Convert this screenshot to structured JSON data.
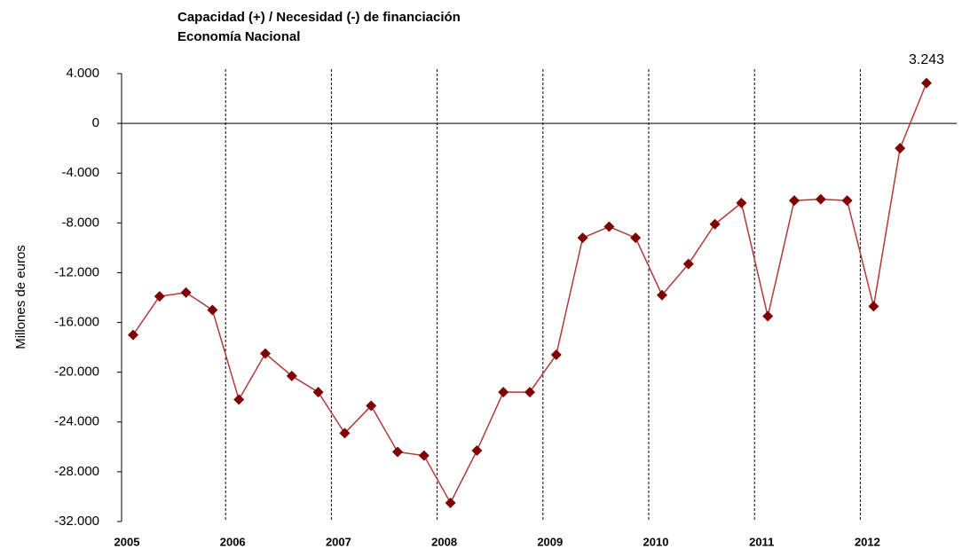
{
  "chart_data": {
    "type": "line",
    "title": "Capacidad (+) / Necesidad (-) de financiación",
    "subtitle": "Economía Nacional",
    "y_label": "Millones de euros",
    "categories": [
      "2005",
      null,
      null,
      null,
      "2006",
      null,
      null,
      null,
      "2007",
      null,
      null,
      null,
      "2008",
      null,
      null,
      null,
      "2009",
      null,
      null,
      null,
      "2010",
      null,
      null,
      null,
      "2011",
      null,
      null,
      null,
      "2012",
      null,
      null
    ],
    "series": [
      {
        "name": "Capacidad / Necesidad de financiación",
        "color": "#b03a3a",
        "marker_color": "#7f0000",
        "values": [
          -17000,
          -13900,
          -13600,
          -15000,
          -22200,
          -18500,
          -20300,
          -21600,
          -24900,
          -22700,
          -26400,
          -26700,
          -30500,
          -26300,
          -21600,
          -21600,
          -18600,
          -9200,
          -8300,
          -9200,
          -13800,
          -11300,
          -8100,
          -6400,
          -15500,
          -6200,
          -6100,
          -6200,
          -14700,
          -2000,
          3243
        ],
        "value_labels": [
          null,
          null,
          null,
          null,
          null,
          null,
          null,
          null,
          null,
          null,
          null,
          null,
          null,
          null,
          null,
          null,
          null,
          null,
          null,
          null,
          null,
          null,
          null,
          null,
          null,
          null,
          null,
          null,
          null,
          null,
          "3.243"
        ]
      }
    ],
    "ylim": [
      -32000,
      4000
    ],
    "yticks": [
      {
        "value": 4000,
        "label": "4.000"
      },
      0,
      {
        "value": -4000,
        "label": "-4.000"
      },
      {
        "value": -8000,
        "label": "-8.000"
      },
      {
        "value": -12000,
        "label": "-12.000"
      },
      {
        "value": -16000,
        "label": "-16.000"
      },
      {
        "value": -20000,
        "label": "-20.000"
      },
      {
        "value": -24000,
        "label": "-24.000"
      },
      {
        "value": -28000,
        "label": "-28.000"
      },
      {
        "value": -32000,
        "label": "-32.000"
      }
    ]
  }
}
